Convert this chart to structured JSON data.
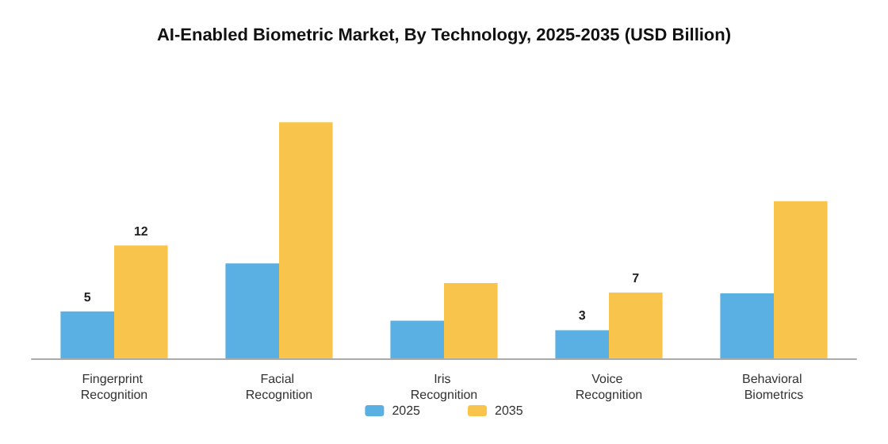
{
  "chart_data": {
    "type": "bar",
    "title": "AI-Enabled Biometric Market, By Technology, 2025-2035 (USD Billion)",
    "categories": [
      "Fingerprint Recognition",
      "Facial Recognition",
      "Iris Recognition",
      "Voice Recognition",
      "Behavioral Biometrics"
    ],
    "series": [
      {
        "name": "2025",
        "color": "#5aafe3",
        "values": [
          5,
          10.1,
          4,
          3,
          6.9
        ],
        "value_labels": [
          "5",
          null,
          null,
          "3",
          null
        ]
      },
      {
        "name": "2035",
        "color": "#f9c44c",
        "values": [
          12,
          25.1,
          8,
          7,
          16.7
        ],
        "value_labels": [
          "12",
          null,
          null,
          "7",
          null
        ]
      }
    ],
    "legend": "bottom",
    "grid": false
  }
}
